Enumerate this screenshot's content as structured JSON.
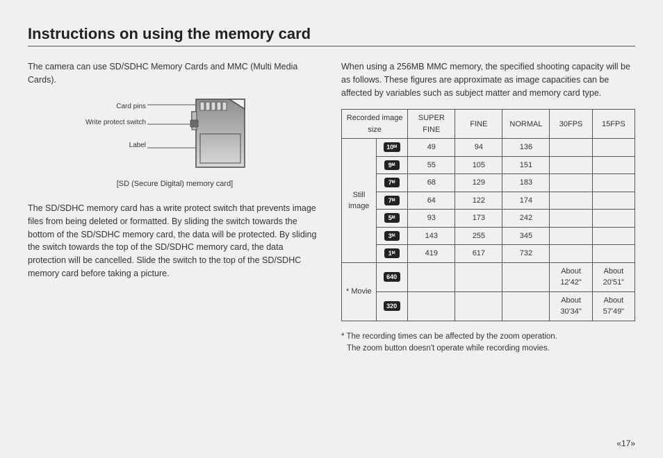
{
  "title": "Instructions on using the memory card",
  "left": {
    "intro": "The camera can use SD/SDHC Memory Cards and MMC (Multi Media Cards).",
    "diagram_labels": {
      "pins": "Card pins",
      "switch": "Write protect switch",
      "label": "Label"
    },
    "caption": "[SD (Secure Digital) memory card]",
    "body": "The SD/SDHC memory card has a write protect switch that prevents image files from being deleted or formatted. By sliding the switch towards the bottom of the SD/SDHC memory card, the data will be protected. By sliding the switch towards the top of the SD/SDHC memory card, the data protection will be cancelled. Slide the switch to the top of the SD/SDHC memory card before taking a picture."
  },
  "right": {
    "intro": "When using a 256MB MMC memory, the specified shooting capacity will be as follows. These figures are approximate as image capacities can be affected by variables such as subject matter and memory card type.",
    "headers": {
      "col0": "Recorded image size",
      "sf": "SUPER FINE",
      "f": "FINE",
      "n": "NORMAL",
      "fps30": "30FPS",
      "fps15": "15FPS"
    },
    "row_labels": {
      "still": "Still image",
      "movie": "* Movie"
    },
    "still": [
      {
        "badge": "10ᴹ",
        "sf": "49",
        "f": "94",
        "n": "136"
      },
      {
        "badge": "9ᴹ",
        "sf": "55",
        "f": "105",
        "n": "151"
      },
      {
        "badge": "7ᴹ",
        "sf": "68",
        "f": "129",
        "n": "183"
      },
      {
        "badge": "7ᴹ",
        "sf": "64",
        "f": "122",
        "n": "174"
      },
      {
        "badge": "5ᴹ",
        "sf": "93",
        "f": "173",
        "n": "242"
      },
      {
        "badge": "3ᴹ",
        "sf": "143",
        "f": "255",
        "n": "345"
      },
      {
        "badge": "1ᴹ",
        "sf": "419",
        "f": "617",
        "n": "732"
      }
    ],
    "movie": [
      {
        "badge": "640",
        "fps30": "About 12'42\"",
        "fps15": "About 20'51\""
      },
      {
        "badge": "320",
        "fps30": "About 30'34\"",
        "fps15": "About 57'49\""
      }
    ],
    "footnote1": "* The recording times can be affected by the zoom operation.",
    "footnote2": "The zoom button doesn't operate while recording movies."
  },
  "pagenum": "«17»",
  "colors": {
    "card_top": "#8e8e8e",
    "card_bottom": "#d8d8d8",
    "card_stroke": "#4a4a4a",
    "pin": "#d9d9d9",
    "switch_body": "#bdbdbd",
    "switch_knob": "#6b6b6b",
    "leader": "#555555"
  }
}
